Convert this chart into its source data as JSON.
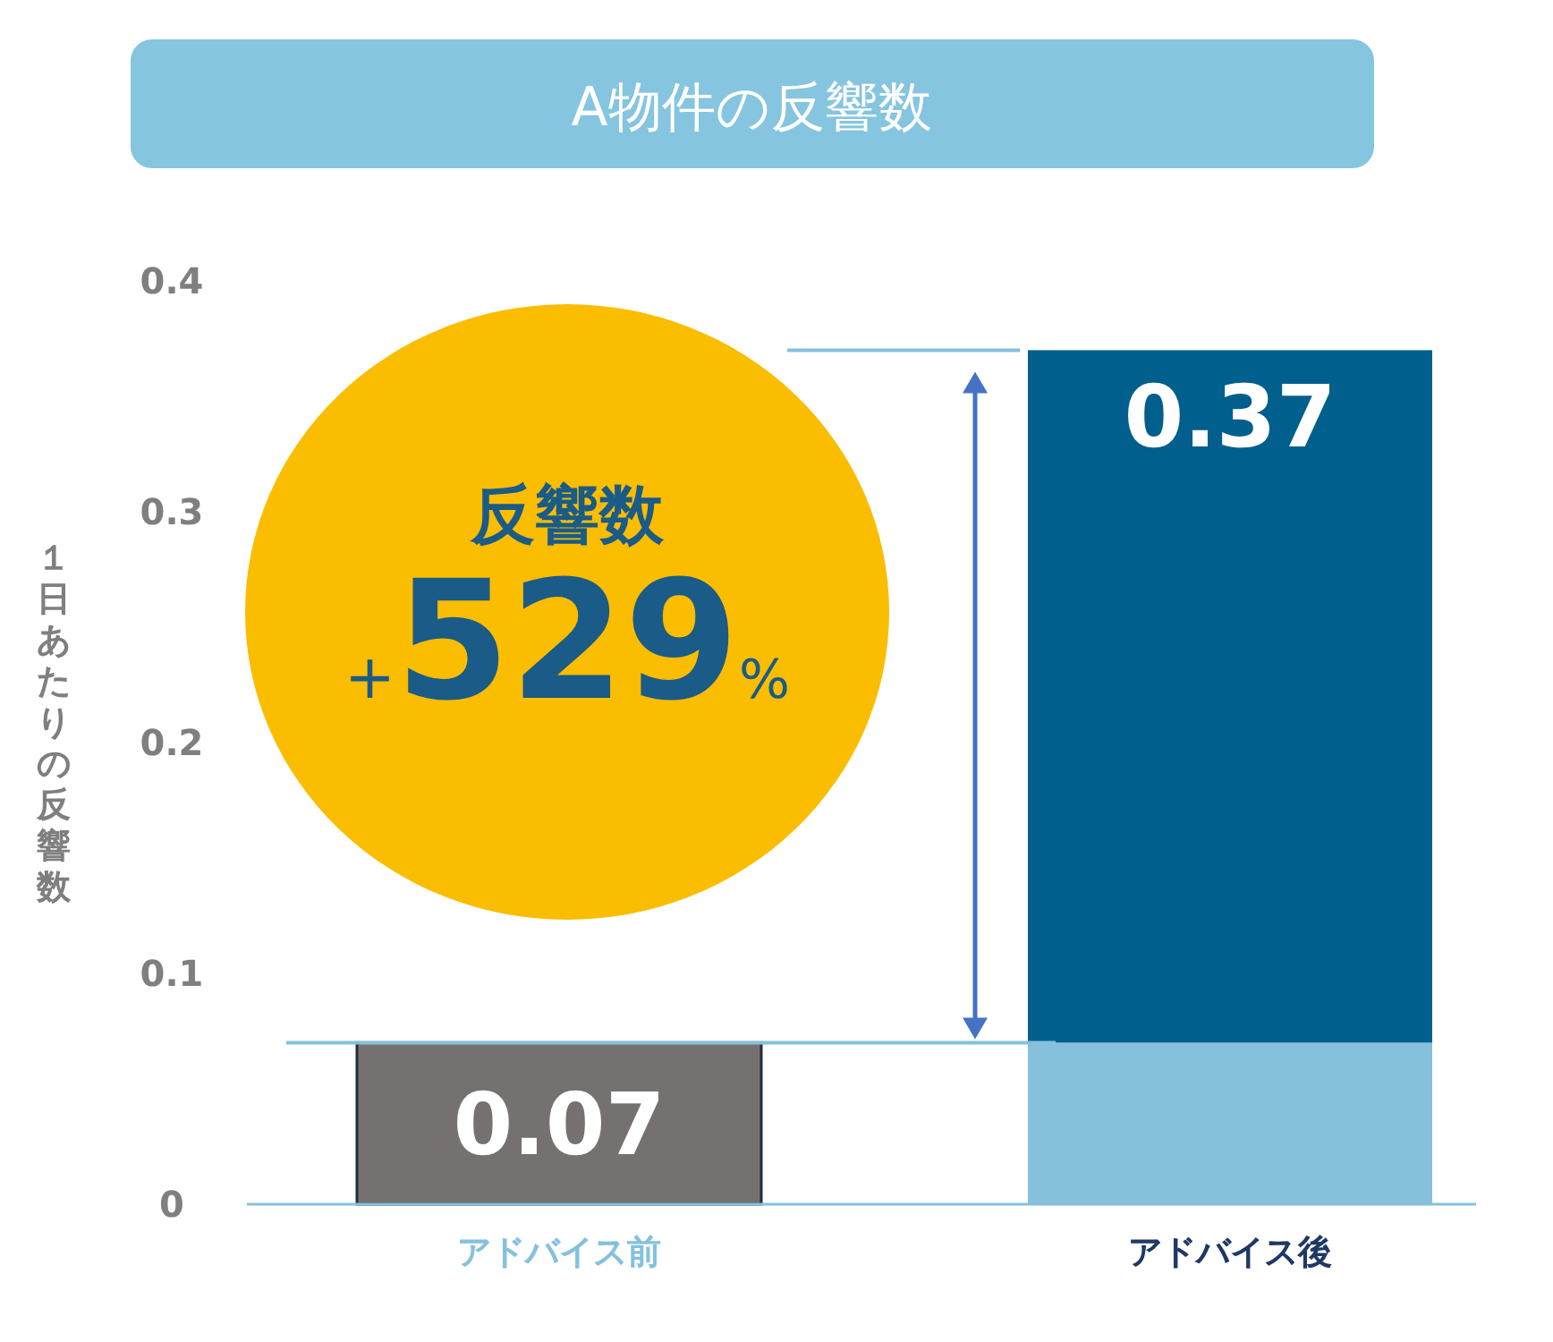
{
  "chart_data": {
    "type": "bar",
    "title": "A物件の反響数",
    "ylabel": "１日あたりの反響数",
    "categories": [
      "アドバイス前",
      "アドバイス後"
    ],
    "stacked": true,
    "series": [
      {
        "colors": [
          "#767171",
          "#85c1dc"
        ],
        "values": [
          0.07,
          0.07
        ],
        "value_labels": [
          "0.07",
          null
        ]
      },
      {
        "color": "#005f8c",
        "values": [
          null,
          0.3
        ]
      }
    ],
    "totals": [
      null,
      "0.37"
    ],
    "ylim": [
      0,
      0.4
    ],
    "yticks": [
      0,
      0.1,
      0.2,
      0.3,
      0.4
    ],
    "grid": false,
    "ref_lines": [
      {
        "axis": "y",
        "value": 0.37,
        "color": "#85c1dc"
      },
      {
        "axis": "y",
        "value": 0.07,
        "color": "#85c1dc"
      }
    ],
    "annotations": [
      "反響数",
      "+529%"
    ]
  }
}
